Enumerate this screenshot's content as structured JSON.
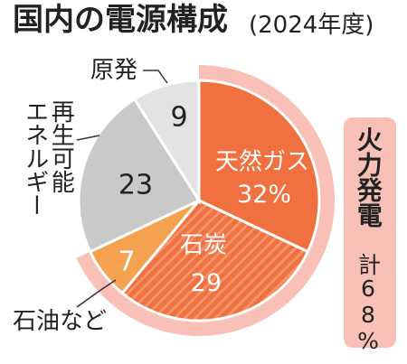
{
  "title": "国内の電源構成",
  "subtitle": "(2024年度)",
  "chart_data": {
    "type": "pie",
    "categories": [
      "天然ガス",
      "石炭",
      "石油など",
      "再生可能\nエネルギー",
      "原発"
    ],
    "values": [
      32,
      29,
      7,
      23,
      9
    ],
    "value_labels": [
      "32%",
      "29",
      "7",
      "23",
      "9"
    ],
    "colors": [
      "#f0703f",
      "#f0703f",
      "#f4a150",
      "#c9c9c9",
      "#e3e3e3"
    ],
    "annotation": {
      "label": "火力発電",
      "value": 68,
      "value_label": "計68%",
      "color": "#f8c0b6"
    }
  }
}
